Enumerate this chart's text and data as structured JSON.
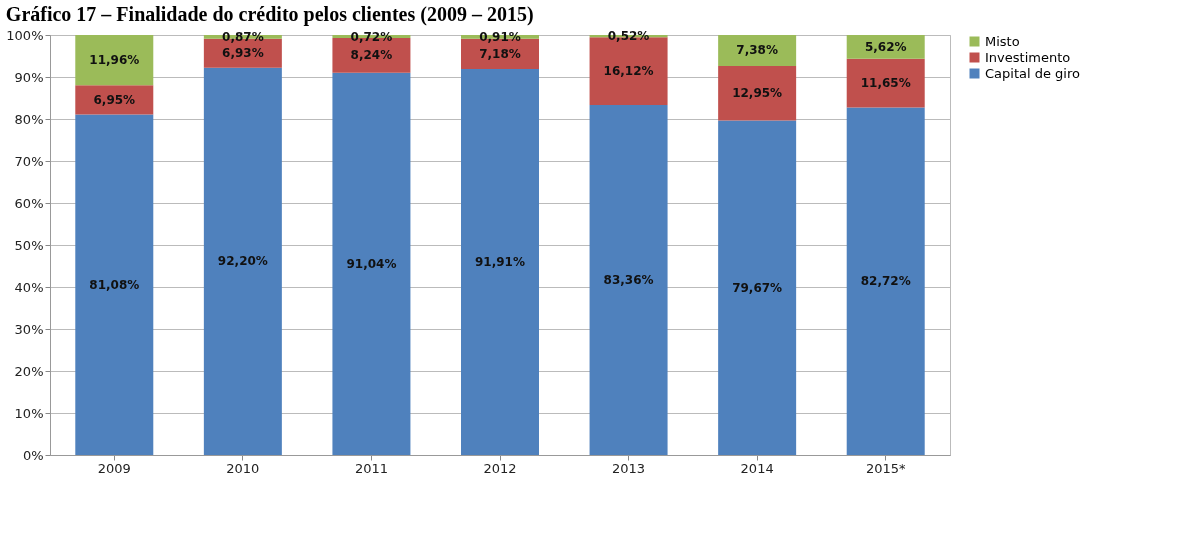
{
  "chart_data": {
    "type": "bar",
    "title": "Gráfico 17 – Finalidade do crédito pelos clientes (2009 – 2015)",
    "categories": [
      "2009",
      "2010",
      "2011",
      "2012",
      "2013",
      "2014",
      "2015*"
    ],
    "stacked": true,
    "series": [
      {
        "name": "Capital de giro",
        "color": "#4f81bd",
        "values": [
          81.08,
          92.2,
          91.04,
          91.91,
          83.36,
          79.67,
          82.72
        ],
        "value_labels": [
          "81,08%",
          "92,20%",
          "91,04%",
          "91,91%",
          "83,36%",
          "79,67%",
          "82,72%"
        ]
      },
      {
        "name": "Investimento",
        "color": "#c0504d",
        "values": [
          6.95,
          6.93,
          8.24,
          7.18,
          16.12,
          12.95,
          11.65
        ],
        "value_labels": [
          "6,95%",
          "6,93%",
          "8,24%",
          "7,18%",
          "16,12%",
          "12,95%",
          "11,65%"
        ]
      },
      {
        "name": "Misto",
        "color": "#9bbb59",
        "values": [
          11.96,
          0.87,
          0.72,
          0.91,
          0.52,
          7.38,
          5.62
        ],
        "value_labels": [
          "11,96%",
          "0,87%",
          "0,72%",
          "0,91%",
          "0,52%",
          "7,38%",
          "5,62%"
        ]
      }
    ],
    "ylim": [
      0,
      100
    ],
    "yticks": [
      {
        "value": 0,
        "label": "0%"
      },
      {
        "value": 10,
        "label": "10%"
      },
      {
        "value": 20,
        "label": "20%"
      },
      {
        "value": 30,
        "label": "30%"
      },
      {
        "value": 40,
        "label": "40%"
      },
      {
        "value": 50,
        "label": "50%"
      },
      {
        "value": 60,
        "label": "60%"
      },
      {
        "value": 70,
        "label": "70%"
      },
      {
        "value": 80,
        "label": "80%"
      },
      {
        "value": 90,
        "label": "90%"
      },
      {
        "value": 100,
        "label": "100%"
      }
    ],
    "grid": "y",
    "legend": "right"
  }
}
